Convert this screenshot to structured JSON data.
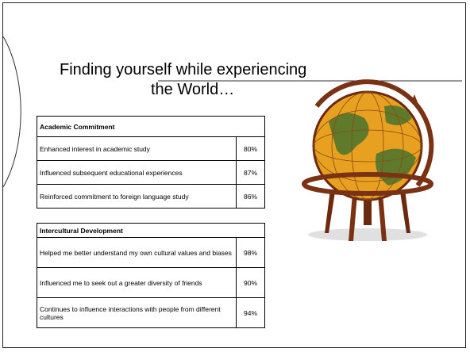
{
  "slide": {
    "title_lines": [
      "Finding yourself while experiencing",
      "the World…"
    ],
    "tables": [
      {
        "header": "Academic Commitment",
        "rows": [
          [
            "Enhanced interest in academic study",
            "80%"
          ],
          [
            "Influenced subsequent educational experiences",
            "87%"
          ],
          [
            "Reinforced commitment to foreign language study",
            "86%"
          ]
        ]
      },
      {
        "header": "Intercultural Development",
        "rows": [
          [
            "Helped me better understand my own cultural values and biases",
            "98%"
          ],
          [
            "Influenced me to seek out a greater diversity of friends",
            "90%"
          ],
          [
            "Continues to influence interactions with people from different cultures",
            "94%"
          ]
        ]
      }
    ]
  }
}
